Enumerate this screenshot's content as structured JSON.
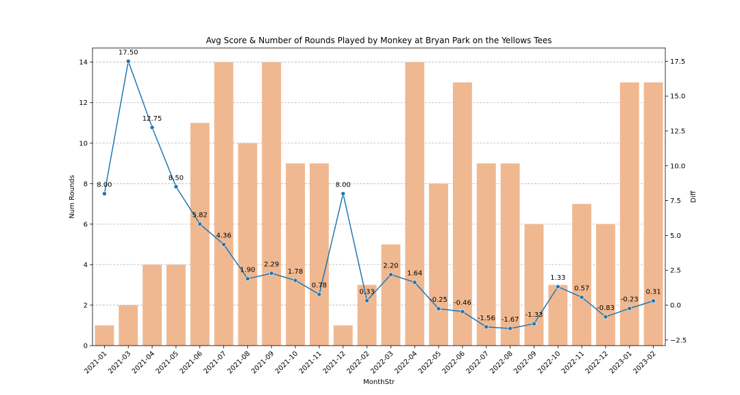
{
  "chart_data": {
    "type": "bar",
    "title": "Avg Score & Number of Rounds Played by Monkey at Bryan Park on the Yellows Tees",
    "xlabel": "MonthStr",
    "ylabel": "Num Rounds",
    "ylabel_right": "Diff",
    "grid": true,
    "categories": [
      "2021-01",
      "2021-03",
      "2021-04",
      "2021-05",
      "2021-06",
      "2021-07",
      "2021-08",
      "2021-09",
      "2021-10",
      "2021-11",
      "2021-12",
      "2022-02",
      "2022-03",
      "2022-04",
      "2022-05",
      "2022-06",
      "2022-07",
      "2022-08",
      "2022-09",
      "2022-10",
      "2022-11",
      "2022-12",
      "2023-01",
      "2023-02"
    ],
    "ylim": [
      0,
      14.7
    ],
    "yticks": [
      0,
      2,
      4,
      6,
      8,
      10,
      12,
      14
    ],
    "ylim_right": [
      -2.9,
      18.45
    ],
    "yticks_right": [
      -2.5,
      0.0,
      2.5,
      5.0,
      7.5,
      10.0,
      12.5,
      15.0,
      17.5
    ],
    "yticks_right_labels": [
      "−2.5",
      "0.0",
      "2.5",
      "5.0",
      "7.5",
      "10.0",
      "12.5",
      "15.0",
      "17.5"
    ],
    "bar_color": "#f0b890",
    "line_color": "#1f77b4",
    "series": [
      {
        "type": "bar",
        "axis": "left",
        "values": [
          1,
          2,
          4,
          4,
          11,
          14,
          10,
          14,
          9,
          9,
          1,
          3,
          5,
          14,
          8,
          13,
          9,
          9,
          6,
          3,
          7,
          6,
          13,
          13
        ]
      },
      {
        "type": "line",
        "axis": "right",
        "values": [
          8.0,
          17.5,
          12.75,
          8.5,
          5.82,
          4.36,
          1.9,
          2.29,
          1.78,
          0.78,
          8.0,
          0.33,
          2.2,
          1.64,
          -0.25,
          -0.46,
          -1.56,
          -1.67,
          -1.33,
          1.33,
          0.57,
          -0.83,
          -0.23,
          0.31
        ],
        "labels": [
          "8.00",
          "17.50",
          "12.75",
          "8.50",
          "5.82",
          "4.36",
          "1.90",
          "2.29",
          "1.78",
          "0.78",
          "8.00",
          "0.33",
          "2.20",
          "1.64",
          "-0.25",
          "-0.46",
          "-1.56",
          "-1.67",
          "-1.33",
          "1.33",
          "0.57",
          "-0.83",
          "-0.23",
          "0.31"
        ]
      }
    ]
  }
}
